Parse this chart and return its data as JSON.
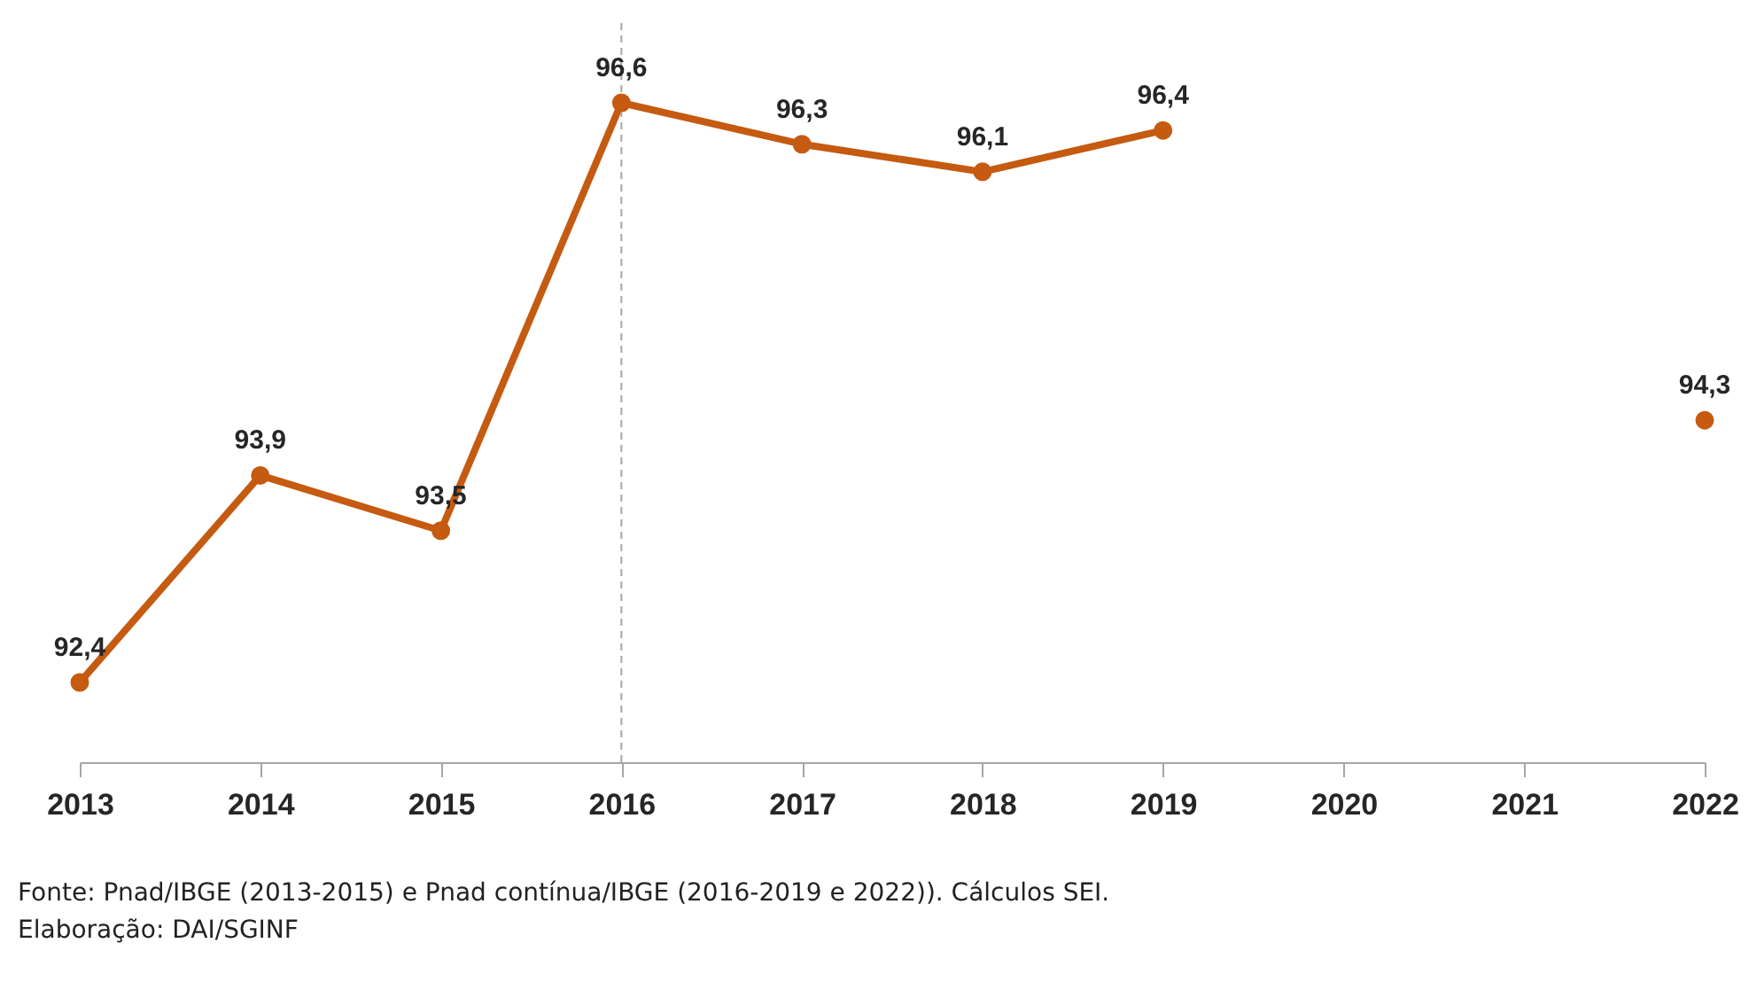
{
  "chart_data": {
    "type": "line",
    "categories": [
      "2013",
      "2014",
      "2015",
      "2016",
      "2017",
      "2018",
      "2019",
      "2020",
      "2021",
      "2022"
    ],
    "series": [
      {
        "color": "#c55a11",
        "values": [
          92.4,
          93.9,
          93.5,
          96.6,
          96.3,
          96.1,
          96.4,
          null,
          null,
          94.3
        ],
        "value_labels": [
          "92,4",
          "93,9",
          "93,5",
          "96,6",
          "96,3",
          "96,1",
          "96,4",
          null,
          null,
          "94,3"
        ]
      }
    ],
    "marker": "circle",
    "line_style": "solid",
    "ref_lines": [
      {
        "axis": "x",
        "value": "2016",
        "color": "#a6a6a6",
        "line_style": "dashed"
      }
    ],
    "annotations": [
      "Fonte: Pnad/IBGE (2013-2015) e Pnad contínua/IBGE (2016-2019 e 2022)). Cálculos SEI.",
      "Elaboração: DAI/SGINF"
    ]
  }
}
